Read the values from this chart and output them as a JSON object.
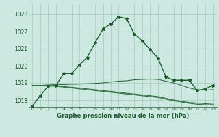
{
  "title": "Graphe pression niveau de la mer (hPa)",
  "background_color": "#cce8e0",
  "grid_color": "#aacec6",
  "line_color_main": "#1a5c2a",
  "line_color_flat": "#2d6e3a",
  "xlim": [
    -0.5,
    23.5
  ],
  "ylim": [
    1017.6,
    1023.6
  ],
  "yticks": [
    1018,
    1019,
    1020,
    1021,
    1022,
    1023
  ],
  "xticks": [
    0,
    1,
    2,
    3,
    4,
    5,
    6,
    7,
    8,
    9,
    10,
    11,
    12,
    13,
    14,
    15,
    16,
    17,
    18,
    19,
    20,
    21,
    22,
    23
  ],
  "series1": [
    1017.65,
    1018.25,
    1018.8,
    1018.85,
    1019.55,
    1019.55,
    1020.05,
    1020.5,
    1021.35,
    1022.15,
    1022.45,
    1022.85,
    1022.75,
    1021.85,
    1021.45,
    1020.95,
    1020.45,
    1019.35,
    1019.15,
    1019.15,
    1019.15,
    1018.55,
    1018.65,
    1018.85
  ],
  "series2": [
    1018.85,
    1018.85,
    1018.88,
    1018.9,
    1018.9,
    1018.92,
    1018.93,
    1018.95,
    1018.97,
    1019.0,
    1019.05,
    1019.1,
    1019.12,
    1019.18,
    1019.2,
    1019.22,
    1019.2,
    1019.1,
    1019.0,
    1018.85,
    1018.7,
    1018.6,
    1018.58,
    1018.6
  ],
  "series3": [
    1018.85,
    1018.85,
    1018.85,
    1018.82,
    1018.78,
    1018.74,
    1018.7,
    1018.65,
    1018.6,
    1018.55,
    1018.5,
    1018.45,
    1018.4,
    1018.35,
    1018.3,
    1018.25,
    1018.2,
    1018.1,
    1018.0,
    1017.92,
    1017.85,
    1017.82,
    1017.78,
    1017.75
  ],
  "series4": [
    1018.85,
    1018.85,
    1018.83,
    1018.8,
    1018.75,
    1018.7,
    1018.65,
    1018.6,
    1018.55,
    1018.5,
    1018.45,
    1018.4,
    1018.35,
    1018.3,
    1018.25,
    1018.2,
    1018.15,
    1018.05,
    1017.95,
    1017.88,
    1017.8,
    1017.75,
    1017.72,
    1017.7
  ]
}
